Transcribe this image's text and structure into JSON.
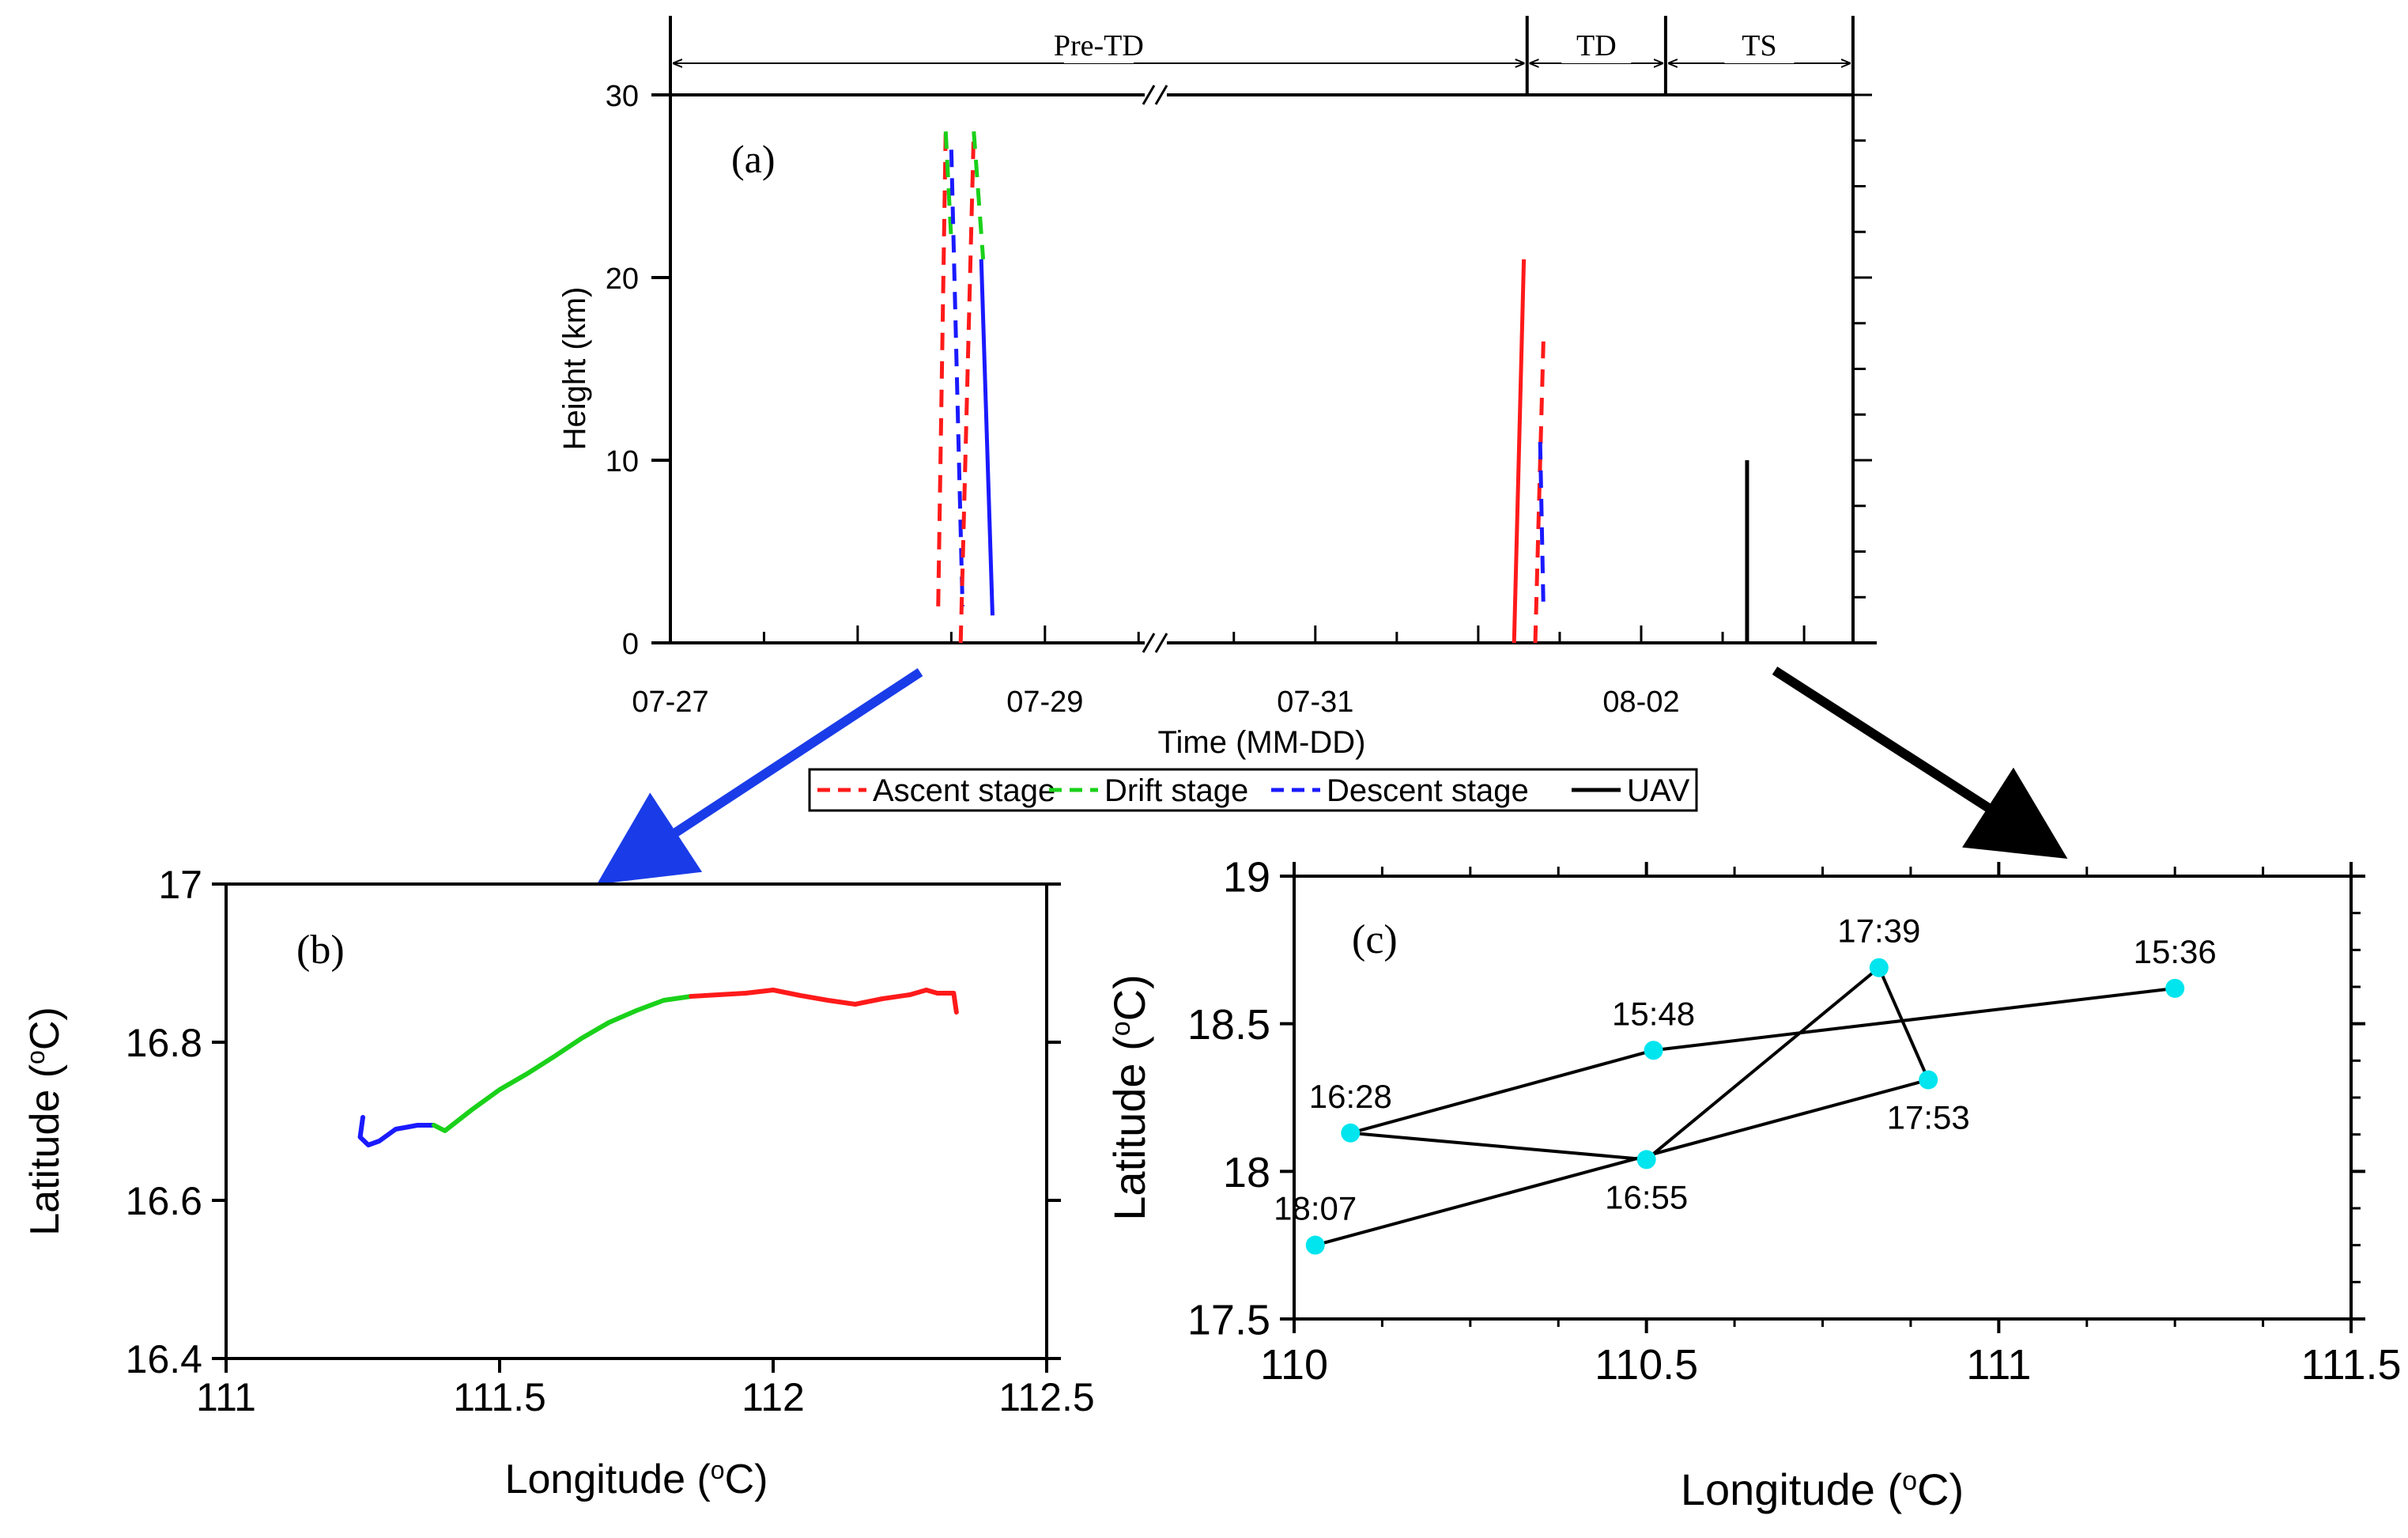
{
  "chart_data": [
    {
      "id": "a",
      "type": "line",
      "panel_label": "(a)",
      "xlabel": "Time (MM-DD)",
      "ylabel": "Height (km)",
      "x_unit": "day-of-month (July 27 = 27, Aug 1 = 32)",
      "ylim": [
        0,
        30
      ],
      "yticks": [
        0,
        10,
        20,
        30
      ],
      "xtick_labels": [
        {
          "x": 27,
          "label": "07-27"
        },
        {
          "x": 29,
          "label": "07-29"
        },
        {
          "x": 31,
          "label": "07-31"
        },
        {
          "x": 33,
          "label": "08-02"
        }
      ],
      "periods": [
        {
          "label": "Pre-TD",
          "start": 27,
          "end": 32.3
        },
        {
          "label": "TD",
          "start": 32.3,
          "end": 33.15
        },
        {
          "label": "TS",
          "start": 33.15,
          "end": 34.3
        }
      ],
      "legend": [
        {
          "label": "Ascent stage",
          "color": "#ff1a1a",
          "dash": true
        },
        {
          "label": "Drift stage",
          "color": "#1ad11a",
          "dash": true
        },
        {
          "label": "Descent stage",
          "color": "#1a1aff",
          "dash": true
        },
        {
          "label": "UAV",
          "color": "#000000",
          "dash": false
        }
      ],
      "series": [
        {
          "name": "Ascent stage",
          "color": "#ff1a1a",
          "dash": true,
          "points": [
            [
              28.43,
              2
            ],
            [
              28.47,
              28
            ]
          ]
        },
        {
          "name": "Drift stage",
          "color": "#1ad11a",
          "dash": true,
          "points": [
            [
              28.47,
              28
            ],
            [
              28.5,
              22
            ]
          ]
        },
        {
          "name": "Descent stage",
          "color": "#1a1aff",
          "dash": true,
          "points": [
            [
              28.5,
              27
            ],
            [
              28.56,
              2
            ]
          ]
        },
        {
          "name": "Ascent stage",
          "color": "#ff1a1a",
          "dash": true,
          "points": [
            [
              28.55,
              0
            ],
            [
              28.62,
              28
            ]
          ]
        },
        {
          "name": "Drift stage",
          "color": "#1ad11a",
          "dash": true,
          "points": [
            [
              28.62,
              28
            ],
            [
              28.67,
              21
            ]
          ]
        },
        {
          "name": "Descent stage",
          "color": "#1a1aff",
          "dash": false,
          "points": [
            [
              28.66,
              21
            ],
            [
              28.72,
              1.5
            ]
          ]
        },
        {
          "name": "Ascent stage",
          "color": "#ff1a1a",
          "dash": false,
          "points": [
            [
              32.22,
              0
            ],
            [
              32.28,
              21
            ]
          ]
        },
        {
          "name": "Ascent stage",
          "color": "#ff1a1a",
          "dash": true,
          "points": [
            [
              32.35,
              0
            ],
            [
              32.4,
              16.5
            ]
          ]
        },
        {
          "name": "Descent stage",
          "color": "#1a1aff",
          "dash": true,
          "points": [
            [
              32.38,
              11
            ],
            [
              32.4,
              2
            ]
          ]
        },
        {
          "name": "UAV",
          "color": "#000000",
          "dash": false,
          "points": [
            [
              33.65,
              0
            ],
            [
              33.65,
              10
            ]
          ]
        }
      ]
    },
    {
      "id": "b",
      "type": "line",
      "panel_label": "(b)",
      "xlabel": "Longitude (oC)",
      "ylabel": "Latitude (oC)",
      "xlim": [
        111,
        112.5
      ],
      "ylim": [
        16.4,
        17
      ],
      "xticks": [
        111,
        111.5,
        112,
        112.5
      ],
      "xtick_labels": [
        "111",
        "111.5",
        "112",
        "112.5"
      ],
      "yticks": [
        16.4,
        16.6,
        16.8,
        17
      ],
      "ytick_labels": [
        "16.4",
        "16.6",
        "16.8",
        "17"
      ],
      "series": [
        {
          "name": "Descent stage",
          "color": "#1a1aff",
          "points": [
            [
              111.25,
              16.705
            ],
            [
              111.245,
              16.68
            ],
            [
              111.26,
              16.67
            ],
            [
              111.28,
              16.675
            ],
            [
              111.31,
              16.69
            ],
            [
              111.35,
              16.695
            ],
            [
              111.38,
              16.695
            ]
          ]
        },
        {
          "name": "Drift stage",
          "color": "#1ad11a",
          "points": [
            [
              111.38,
              16.695
            ],
            [
              111.4,
              16.688
            ],
            [
              111.45,
              16.715
            ],
            [
              111.5,
              16.74
            ],
            [
              111.55,
              16.76
            ],
            [
              111.6,
              16.782
            ],
            [
              111.65,
              16.805
            ],
            [
              111.7,
              16.825
            ],
            [
              111.75,
              16.84
            ],
            [
              111.8,
              16.853
            ],
            [
              111.85,
              16.858
            ]
          ]
        },
        {
          "name": "Ascent stage",
          "color": "#ff1a1a",
          "points": [
            [
              111.85,
              16.858
            ],
            [
              111.9,
              16.86
            ],
            [
              111.95,
              16.862
            ],
            [
              112.0,
              16.866
            ],
            [
              112.05,
              16.859
            ],
            [
              112.1,
              16.853
            ],
            [
              112.15,
              16.848
            ],
            [
              112.2,
              16.855
            ],
            [
              112.25,
              16.86
            ],
            [
              112.28,
              16.866
            ],
            [
              112.3,
              16.862
            ],
            [
              112.33,
              16.862
            ],
            [
              112.335,
              16.838
            ]
          ]
        }
      ]
    },
    {
      "id": "c",
      "type": "line",
      "panel_label": "(c)",
      "xlabel": "Longitude (oC)",
      "ylabel": "Latitude (oC)",
      "xlim": [
        110,
        111.5
      ],
      "ylim": [
        17.5,
        19
      ],
      "xticks": [
        110,
        110.5,
        111,
        111.5
      ],
      "xtick_labels": [
        "110",
        "110.5",
        "111",
        "111.5"
      ],
      "yticks": [
        17.5,
        18,
        18.5,
        19
      ],
      "ytick_labels": [
        "17.5",
        "18",
        "18.5",
        "19"
      ],
      "series": [
        {
          "name": "UAV",
          "color": "#000000",
          "marker_color": "#00e5ee",
          "points": [
            {
              "lon": 111.25,
              "lat": 18.62,
              "label": "15:36",
              "label_pos": "above"
            },
            {
              "lon": 110.51,
              "lat": 18.41,
              "label": "15:48",
              "label_pos": "above"
            },
            {
              "lon": 110.08,
              "lat": 18.13,
              "label": "16:28",
              "label_pos": "above"
            },
            {
              "lon": 110.5,
              "lat": 18.04,
              "label": "16:55",
              "label_pos": "below"
            },
            {
              "lon": 110.83,
              "lat": 18.69,
              "label": "17:39",
              "label_pos": "above"
            },
            {
              "lon": 110.9,
              "lat": 18.31,
              "label": "17:53",
              "label_pos": "below"
            },
            {
              "lon": 110.03,
              "lat": 17.75,
              "label": "18:07",
              "label_pos": "above"
            }
          ]
        }
      ]
    }
  ]
}
